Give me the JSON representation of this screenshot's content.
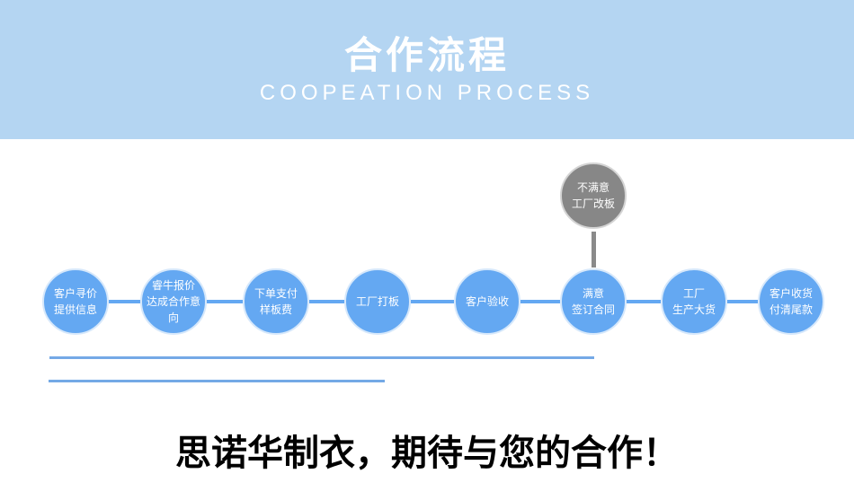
{
  "header": {
    "title": "合作流程",
    "subtitle": "COOPEATION PROCESS"
  },
  "steps": [
    {
      "l1": "客户寻价",
      "l2": "提供信息"
    },
    {
      "l1": "睿牛报价",
      "l2": "达成合作意向"
    },
    {
      "l1": "下单支付",
      "l2": "样板费"
    },
    {
      "l1": "工厂打板",
      "l2": ""
    },
    {
      "l1": "客户验收",
      "l2": ""
    },
    {
      "l1": "满意",
      "l2": "签订合同"
    },
    {
      "l1": "工厂",
      "l2": "生产大货"
    },
    {
      "l1": "客户收货",
      "l2": "付清尾款"
    }
  ],
  "branch": {
    "l1": "不满意",
    "l2": "工厂改板"
  },
  "slogan": "思诺华制衣，期待与您的合作！",
  "colors": {
    "header": "#b4d5f2",
    "step": "#64a8f2",
    "branch": "#878787"
  }
}
